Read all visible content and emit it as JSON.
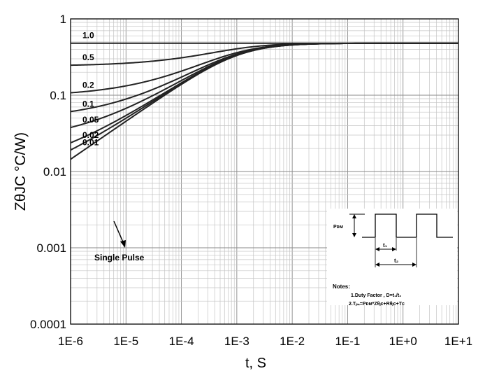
{
  "chart_data": {
    "type": "line",
    "title": "",
    "xlabel": "t, S",
    "ylabel": "ZθJC °C/W)",
    "xscale": "log",
    "yscale": "log",
    "xlim": [
      1e-06,
      10
    ],
    "ylim": [
      0.0001,
      1
    ],
    "grid": true,
    "x_tick_labels": [
      "1E-6",
      "1E-5",
      "1E-4",
      "1E-3",
      "1E-2",
      "1E-1",
      "1E+0",
      "1E+1"
    ],
    "y_tick_labels": [
      "0.0001",
      "0.001",
      "0.01",
      "0.1",
      "1"
    ],
    "steady_state_value": 0.48,
    "single_pulse_tau": 0.0011,
    "series": [
      {
        "name": "1.0",
        "duty": 1.0
      },
      {
        "name": "0.5",
        "duty": 0.5
      },
      {
        "name": "0.2",
        "duty": 0.2
      },
      {
        "name": "0.1",
        "duty": 0.1
      },
      {
        "name": "0.05",
        "duty": 0.05
      },
      {
        "name": "0.02",
        "duty": 0.02
      },
      {
        "name": "0.01",
        "duty": 0.01
      },
      {
        "name": "Single Pulse",
        "duty": 0
      }
    ],
    "annotations": {
      "single_pulse_label": "Single Pulse",
      "pdm_label": "Pᴅᴍ",
      "t1_label": "t₁",
      "t2_label": "t₂",
      "notes_title": "Notes:",
      "note1": "1.Duty Factor , D=t₁/t₂",
      "note2": "2.Tⱼₘ=Pᴅᴍ*Zθⱼᴄ+Rθⱼᴄ+Tᴄ"
    }
  }
}
